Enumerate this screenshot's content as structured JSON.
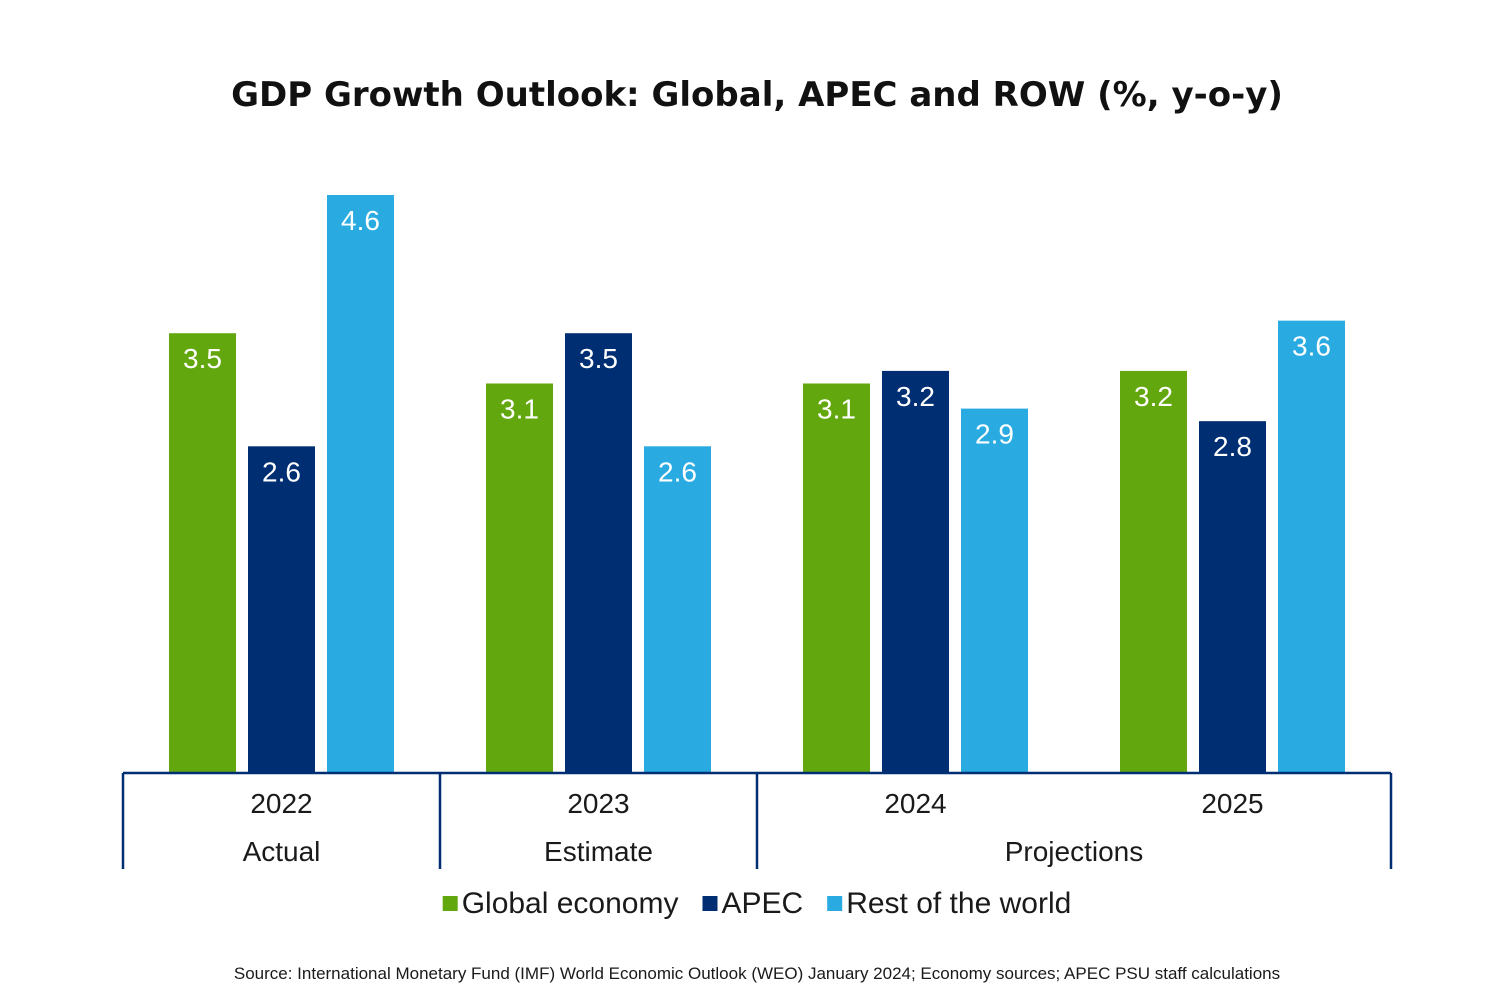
{
  "chart_data": {
    "type": "bar",
    "title": "GDP Growth Outlook: Global, APEC and ROW (%, y-o-y)",
    "xlabel": "",
    "ylabel": "",
    "ylim": [
      0,
      4.6
    ],
    "grid": false,
    "legend_position": "bottom",
    "categories": [
      "2022",
      "2023",
      "2024",
      "2025"
    ],
    "groups": [
      {
        "label": "Actual",
        "categories": [
          "2022"
        ]
      },
      {
        "label": "Estimate",
        "categories": [
          "2023"
        ]
      },
      {
        "label": "Projections",
        "categories": [
          "2024",
          "2025"
        ]
      }
    ],
    "series": [
      {
        "name": "Global economy",
        "color": "#63a70f",
        "values": [
          3.5,
          3.1,
          3.1,
          3.2
        ]
      },
      {
        "name": "APEC",
        "color": "#002e72",
        "values": [
          2.6,
          3.5,
          3.2,
          2.8
        ]
      },
      {
        "name": "Rest of the world",
        "color": "#29abe2",
        "values": [
          4.6,
          2.6,
          2.9,
          3.6
        ]
      }
    ],
    "value_labels": [
      [
        "3.5",
        "3.1",
        "3.1",
        "3.2"
      ],
      [
        "2.6",
        "3.5",
        "3.2",
        "2.8"
      ],
      [
        "4.6",
        "2.6",
        "2.9",
        "3.6"
      ]
    ],
    "axis_color": "#002e72",
    "source": "Source: International Monetary Fund (IMF) World Economic Outlook (WEO) January 2024; Economy sources; APEC PSU staff calculations"
  }
}
